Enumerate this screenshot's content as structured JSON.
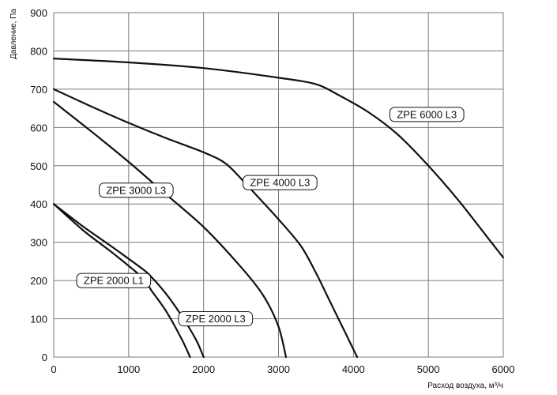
{
  "chart_data": {
    "type": "line",
    "xlabel": "Расход воздуха, м³/ч",
    "ylabel": "Давление, Па",
    "xlim": [
      0,
      6000
    ],
    "ylim": [
      0,
      900
    ],
    "x_ticks": [
      0,
      1000,
      2000,
      3000,
      4000,
      5000,
      6000
    ],
    "y_ticks": [
      0,
      100,
      200,
      300,
      400,
      500,
      600,
      700,
      800,
      900
    ],
    "grid": true,
    "series": [
      {
        "name": "ZPE 2000 L1",
        "x": [
          0,
          400,
          800,
          1200,
          1300,
          1500,
          1700,
          1820
        ],
        "y": [
          400,
          330,
          270,
          205,
          175,
          120,
          50,
          0
        ]
      },
      {
        "name": "ZPE 2000 L3",
        "x": [
          0,
          400,
          800,
          1200,
          1300,
          1500,
          1700,
          1900,
          2000
        ],
        "y": [
          400,
          340,
          285,
          228,
          210,
          165,
          110,
          45,
          0
        ]
      },
      {
        "name": "ZPE 3000 L3",
        "x": [
          0,
          500,
          1000,
          1500,
          2000,
          2500,
          2800,
          3000,
          3100
        ],
        "y": [
          667,
          590,
          510,
          425,
          340,
          235,
          160,
          80,
          0
        ]
      },
      {
        "name": "ZPE 4000 L3",
        "x": [
          0,
          500,
          1000,
          1500,
          2000,
          2300,
          2600,
          3000,
          3300,
          3500,
          3700,
          3900,
          4050
        ],
        "y": [
          700,
          655,
          612,
          572,
          535,
          505,
          445,
          360,
          290,
          220,
          140,
          60,
          0
        ]
      },
      {
        "name": "ZPE 6000 L3",
        "x": [
          0,
          1000,
          2000,
          3000,
          3500,
          3800,
          4200,
          4600,
          5000,
          5400,
          5800,
          6000
        ],
        "y": [
          780,
          770,
          755,
          730,
          713,
          685,
          640,
          580,
          500,
          410,
          310,
          260
        ]
      }
    ],
    "annotations": [
      {
        "text": "ZPE 2000 L1",
        "x": 800,
        "y": 200
      },
      {
        "text": "ZPE 2000 L3",
        "x": 2160,
        "y": 100
      },
      {
        "text": "ZPE 3000 L3",
        "x": 1100,
        "y": 436
      },
      {
        "text": "ZPE 4000 L3",
        "x": 3020,
        "y": 456
      },
      {
        "text": "ZPE 6000 L3",
        "x": 4980,
        "y": 634
      }
    ]
  }
}
